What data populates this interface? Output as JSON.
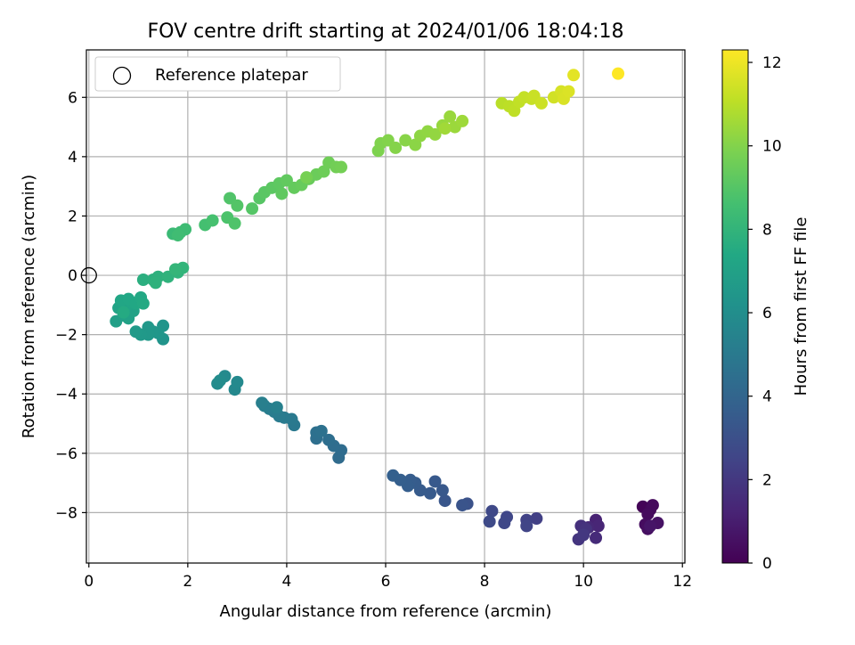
{
  "chart_data": {
    "type": "scatter",
    "title": "FOV centre drift starting at 2024/01/06 18:04:18",
    "xlabel": "Angular distance from reference (arcmin)",
    "ylabel": "Rotation from reference (arcmin)",
    "xlim": [
      -0.05,
      12.05
    ],
    "ylim": [
      -9.7,
      7.6
    ],
    "xticks": [
      "0",
      "2",
      "4",
      "6",
      "8",
      "10",
      "12"
    ],
    "yticks": [
      "−8",
      "−6",
      "−4",
      "−2",
      "0",
      "2",
      "4",
      "6"
    ],
    "grid": true,
    "legend": {
      "placement": "top-left",
      "entries": [
        "Reference platepar"
      ]
    },
    "reference_point": {
      "x": 0,
      "y": 0
    },
    "colorbar": {
      "label": "Hours from first FF file",
      "colormap": "viridis",
      "range": [
        0,
        12.3
      ],
      "ticks": [
        "0",
        "2",
        "4",
        "6",
        "8",
        "10",
        "12"
      ]
    },
    "series": [
      {
        "points": [
          {
            "x": 11.2,
            "y": -7.8,
            "t": 0.1
          },
          {
            "x": 11.35,
            "y": -7.9,
            "t": 0.2
          },
          {
            "x": 11.4,
            "y": -7.75,
            "t": 0.3
          },
          {
            "x": 11.3,
            "y": -8.05,
            "t": 0.35
          },
          {
            "x": 11.25,
            "y": -8.4,
            "t": 0.4
          },
          {
            "x": 11.3,
            "y": -8.55,
            "t": 0.5
          },
          {
            "x": 11.5,
            "y": -8.35,
            "t": 0.6
          },
          {
            "x": 11.35,
            "y": -8.45,
            "t": 0.7
          },
          {
            "x": 10.25,
            "y": -8.25,
            "t": 1.2
          },
          {
            "x": 10.3,
            "y": -8.45,
            "t": 1.3
          },
          {
            "x": 10.1,
            "y": -8.5,
            "t": 1.4
          },
          {
            "x": 10.25,
            "y": -8.85,
            "t": 1.5
          },
          {
            "x": 9.95,
            "y": -8.45,
            "t": 1.7
          },
          {
            "x": 10.05,
            "y": -8.55,
            "t": 1.8
          },
          {
            "x": 9.9,
            "y": -8.9,
            "t": 1.9
          },
          {
            "x": 10.0,
            "y": -8.75,
            "t": 2.0
          },
          {
            "x": 9.05,
            "y": -8.2,
            "t": 2.3
          },
          {
            "x": 8.85,
            "y": -8.25,
            "t": 2.4
          },
          {
            "x": 8.85,
            "y": -8.45,
            "t": 2.5
          },
          {
            "x": 8.45,
            "y": -8.15,
            "t": 2.6
          },
          {
            "x": 8.4,
            "y": -8.35,
            "t": 2.65
          },
          {
            "x": 8.15,
            "y": -7.95,
            "t": 2.7
          },
          {
            "x": 8.1,
            "y": -8.3,
            "t": 2.75
          },
          {
            "x": 7.65,
            "y": -7.7,
            "t": 3.1
          },
          {
            "x": 7.55,
            "y": -7.75,
            "t": 3.2
          },
          {
            "x": 7.2,
            "y": -7.6,
            "t": 3.3
          },
          {
            "x": 7.15,
            "y": -7.25,
            "t": 3.35
          },
          {
            "x": 7.0,
            "y": -6.95,
            "t": 3.4
          },
          {
            "x": 6.9,
            "y": -7.35,
            "t": 3.45
          },
          {
            "x": 6.7,
            "y": -7.25,
            "t": 3.5
          },
          {
            "x": 6.6,
            "y": -7.0,
            "t": 3.55
          },
          {
            "x": 6.5,
            "y": -6.9,
            "t": 3.6
          },
          {
            "x": 6.45,
            "y": -7.1,
            "t": 3.65
          },
          {
            "x": 6.3,
            "y": -6.9,
            "t": 3.7
          },
          {
            "x": 6.15,
            "y": -6.75,
            "t": 3.75
          },
          {
            "x": 5.05,
            "y": -6.15,
            "t": 4.3
          },
          {
            "x": 5.1,
            "y": -5.9,
            "t": 4.35
          },
          {
            "x": 4.95,
            "y": -5.75,
            "t": 4.4
          },
          {
            "x": 4.85,
            "y": -5.55,
            "t": 4.45
          },
          {
            "x": 4.6,
            "y": -5.5,
            "t": 4.5
          },
          {
            "x": 4.6,
            "y": -5.3,
            "t": 4.55
          },
          {
            "x": 4.7,
            "y": -5.25,
            "t": 4.6
          },
          {
            "x": 4.15,
            "y": -5.05,
            "t": 4.9
          },
          {
            "x": 4.1,
            "y": -4.85,
            "t": 4.95
          },
          {
            "x": 3.95,
            "y": -4.8,
            "t": 5.0
          },
          {
            "x": 3.85,
            "y": -4.75,
            "t": 5.05
          },
          {
            "x": 3.75,
            "y": -4.6,
            "t": 5.1
          },
          {
            "x": 3.65,
            "y": -4.5,
            "t": 5.15
          },
          {
            "x": 3.55,
            "y": -4.4,
            "t": 5.2
          },
          {
            "x": 3.5,
            "y": -4.3,
            "t": 5.25
          },
          {
            "x": 3.8,
            "y": -4.45,
            "t": 5.3
          },
          {
            "x": 2.95,
            "y": -3.85,
            "t": 5.7
          },
          {
            "x": 3.0,
            "y": -3.6,
            "t": 5.75
          },
          {
            "x": 2.75,
            "y": -3.4,
            "t": 5.8
          },
          {
            "x": 2.6,
            "y": -3.65,
            "t": 5.85
          },
          {
            "x": 2.65,
            "y": -3.55,
            "t": 5.9
          },
          {
            "x": 1.5,
            "y": -2.15,
            "t": 6.3
          },
          {
            "x": 1.5,
            "y": -1.7,
            "t": 6.35
          },
          {
            "x": 1.4,
            "y": -1.95,
            "t": 6.4
          },
          {
            "x": 1.3,
            "y": -1.9,
            "t": 6.45
          },
          {
            "x": 1.2,
            "y": -1.75,
            "t": 6.5
          },
          {
            "x": 1.2,
            "y": -2.0,
            "t": 6.55
          },
          {
            "x": 1.05,
            "y": -2.0,
            "t": 6.6
          },
          {
            "x": 0.95,
            "y": -1.9,
            "t": 6.65
          },
          {
            "x": 0.55,
            "y": -1.55,
            "t": 6.9
          },
          {
            "x": 0.7,
            "y": -1.35,
            "t": 6.95
          },
          {
            "x": 0.8,
            "y": -1.45,
            "t": 7.0
          },
          {
            "x": 0.9,
            "y": -1.2,
            "t": 7.05
          },
          {
            "x": 0.6,
            "y": -1.1,
            "t": 7.1
          },
          {
            "x": 0.75,
            "y": -1.05,
            "t": 7.15
          },
          {
            "x": 0.85,
            "y": -0.9,
            "t": 7.2
          },
          {
            "x": 0.65,
            "y": -0.85,
            "t": 7.25
          },
          {
            "x": 0.8,
            "y": -0.8,
            "t": 7.3
          },
          {
            "x": 0.95,
            "y": -0.95,
            "t": 7.35
          },
          {
            "x": 1.05,
            "y": -0.75,
            "t": 7.4
          },
          {
            "x": 1.1,
            "y": -0.95,
            "t": 7.45
          },
          {
            "x": 0.7,
            "y": -1.25,
            "t": 7.5
          },
          {
            "x": 1.1,
            "y": -0.15,
            "t": 7.7
          },
          {
            "x": 1.3,
            "y": -0.15,
            "t": 7.75
          },
          {
            "x": 1.4,
            "y": -0.05,
            "t": 7.8
          },
          {
            "x": 1.35,
            "y": -0.25,
            "t": 7.85
          },
          {
            "x": 1.6,
            "y": -0.05,
            "t": 7.9
          },
          {
            "x": 1.8,
            "y": 0.1,
            "t": 7.95
          },
          {
            "x": 1.9,
            "y": 0.25,
            "t": 8.0
          },
          {
            "x": 1.75,
            "y": 0.2,
            "t": 8.05
          },
          {
            "x": 1.7,
            "y": 1.4,
            "t": 8.3
          },
          {
            "x": 1.85,
            "y": 1.45,
            "t": 8.35
          },
          {
            "x": 1.95,
            "y": 1.55,
            "t": 8.4
          },
          {
            "x": 1.8,
            "y": 1.35,
            "t": 8.45
          },
          {
            "x": 2.35,
            "y": 1.7,
            "t": 8.6
          },
          {
            "x": 2.5,
            "y": 1.85,
            "t": 8.65
          },
          {
            "x": 2.8,
            "y": 1.95,
            "t": 8.8
          },
          {
            "x": 2.95,
            "y": 1.75,
            "t": 8.85
          },
          {
            "x": 2.85,
            "y": 2.6,
            "t": 8.9
          },
          {
            "x": 3.0,
            "y": 2.35,
            "t": 8.95
          },
          {
            "x": 3.3,
            "y": 2.25,
            "t": 9.0
          },
          {
            "x": 3.45,
            "y": 2.6,
            "t": 9.05
          },
          {
            "x": 3.55,
            "y": 2.8,
            "t": 9.1
          },
          {
            "x": 3.7,
            "y": 2.95,
            "t": 9.15
          },
          {
            "x": 3.85,
            "y": 3.1,
            "t": 9.2
          },
          {
            "x": 3.9,
            "y": 2.75,
            "t": 9.25
          },
          {
            "x": 4.0,
            "y": 3.2,
            "t": 9.3
          },
          {
            "x": 4.15,
            "y": 2.95,
            "t": 9.35
          },
          {
            "x": 4.3,
            "y": 3.05,
            "t": 9.4
          },
          {
            "x": 4.45,
            "y": 3.25,
            "t": 9.45
          },
          {
            "x": 4.6,
            "y": 3.4,
            "t": 9.5
          },
          {
            "x": 4.75,
            "y": 3.5,
            "t": 9.55
          },
          {
            "x": 4.85,
            "y": 3.8,
            "t": 9.6
          },
          {
            "x": 5.0,
            "y": 3.65,
            "t": 9.65
          },
          {
            "x": 5.1,
            "y": 3.65,
            "t": 9.7
          },
          {
            "x": 4.4,
            "y": 3.3,
            "t": 9.75
          },
          {
            "x": 5.85,
            "y": 4.2,
            "t": 9.9
          },
          {
            "x": 5.9,
            "y": 4.45,
            "t": 9.95
          },
          {
            "x": 6.05,
            "y": 4.55,
            "t": 10.0
          },
          {
            "x": 6.2,
            "y": 4.3,
            "t": 10.05
          },
          {
            "x": 6.4,
            "y": 4.55,
            "t": 10.1
          },
          {
            "x": 6.6,
            "y": 4.4,
            "t": 10.15
          },
          {
            "x": 6.7,
            "y": 4.7,
            "t": 10.2
          },
          {
            "x": 6.85,
            "y": 4.85,
            "t": 10.25
          },
          {
            "x": 7.0,
            "y": 4.75,
            "t": 10.3
          },
          {
            "x": 7.15,
            "y": 5.05,
            "t": 10.35
          },
          {
            "x": 7.3,
            "y": 5.35,
            "t": 10.4
          },
          {
            "x": 7.4,
            "y": 5.0,
            "t": 10.45
          },
          {
            "x": 7.55,
            "y": 5.2,
            "t": 10.5
          },
          {
            "x": 7.2,
            "y": 4.95,
            "t": 10.55
          },
          {
            "x": 8.35,
            "y": 5.8,
            "t": 11.0
          },
          {
            "x": 8.5,
            "y": 5.7,
            "t": 11.05
          },
          {
            "x": 8.6,
            "y": 5.55,
            "t": 11.1
          },
          {
            "x": 8.7,
            "y": 5.85,
            "t": 11.15
          },
          {
            "x": 8.8,
            "y": 6.0,
            "t": 11.2
          },
          {
            "x": 8.95,
            "y": 5.95,
            "t": 11.25
          },
          {
            "x": 9.0,
            "y": 6.05,
            "t": 11.3
          },
          {
            "x": 9.15,
            "y": 5.8,
            "t": 11.35
          },
          {
            "x": 9.4,
            "y": 6.0,
            "t": 11.45
          },
          {
            "x": 9.55,
            "y": 6.2,
            "t": 11.55
          },
          {
            "x": 9.6,
            "y": 5.95,
            "t": 11.6
          },
          {
            "x": 9.7,
            "y": 6.2,
            "t": 11.65
          },
          {
            "x": 9.8,
            "y": 6.75,
            "t": 11.8
          },
          {
            "x": 10.7,
            "y": 6.8,
            "t": 12.3
          }
        ]
      }
    ]
  }
}
